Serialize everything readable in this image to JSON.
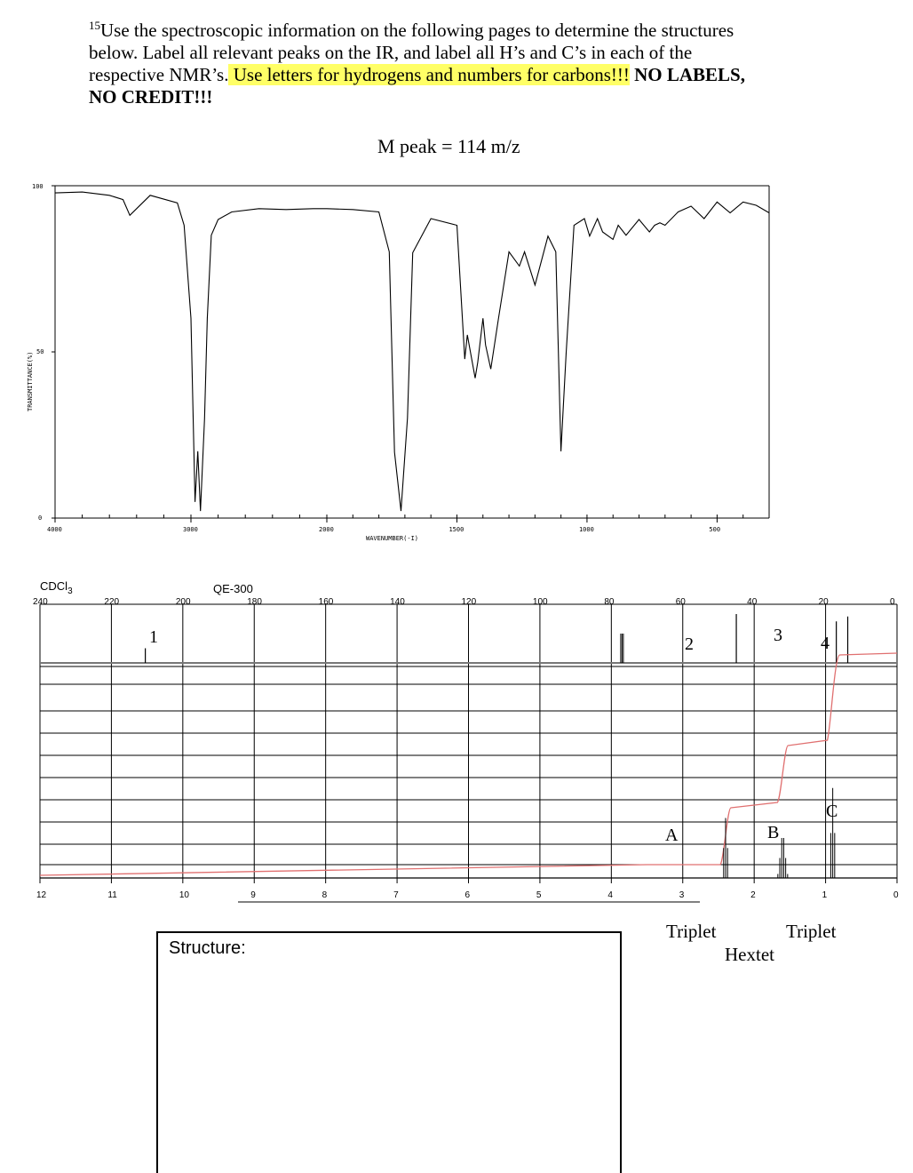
{
  "instructions": {
    "superscript": "15",
    "line1": "Use the spectroscopic information on the following pages to determine the structures",
    "line2": "below.  Label all relevant peaks on the IR, and label all H’s and C’s in each of the",
    "line3_pre": "respective NMR’s.",
    "line3_highlight": " Use letters for hydrogens and numbers for carbons!!!",
    "line3_bold": " NO LABELS,",
    "line4_bold": "NO CREDIT!!!"
  },
  "mass_spec": {
    "m_peak": "M peak = 114 m/z"
  },
  "ir": {
    "ylabel": "TRANSMITTANCE(%)",
    "xlabel": "WAVENUMBER(-I)",
    "y_ticks": [
      "100",
      "50",
      "0"
    ],
    "x_ticks": [
      "4000",
      "3000",
      "2000",
      "1500",
      "1000",
      "500"
    ]
  },
  "c13": {
    "solvent": "CDCl3",
    "instrument": "QE-300",
    "ticks": [
      "240",
      "220",
      "200",
      "180",
      "160",
      "140",
      "120",
      "100",
      "80",
      "60",
      "40",
      "20",
      "0"
    ],
    "peak_labels": [
      "1",
      "2",
      "3",
      "4"
    ]
  },
  "h1": {
    "ticks": [
      "12",
      "11",
      "10",
      "9",
      "8",
      "7",
      "6",
      "5",
      "4",
      "3",
      "2",
      "1",
      "0"
    ],
    "peak_labels": [
      "A",
      "B",
      "C"
    ],
    "multiplicities": [
      "Triplet",
      "Hextet",
      "Triplet"
    ]
  },
  "structure": {
    "label": "Structure:"
  },
  "chart_data": [
    {
      "type": "line",
      "title": "",
      "xlabel": "WAVENUMBER(-I)",
      "ylabel": "TRANSMITTANCE(%)",
      "xlim": [
        4000,
        300
      ],
      "ylim": [
        0,
        100
      ],
      "series": [
        {
          "x": [
            4000,
            3800,
            3600,
            3500,
            3450,
            3300,
            3100,
            3050,
            3000,
            2970,
            2950,
            2930,
            2900,
            2880,
            2850,
            2800,
            2700,
            2500,
            2300,
            2100,
            2000,
            1900,
            1800,
            1760,
            1740,
            1715,
            1690,
            1670,
            1600,
            1500,
            1470,
            1460,
            1430,
            1420,
            1400,
            1390,
            1370,
            1340,
            1300,
            1260,
            1240,
            1200,
            1150,
            1120,
            1100,
            1080,
            1050,
            1010,
            990,
            960,
            940,
            900,
            880,
            850,
            800,
            760,
            740,
            720,
            700,
            650,
            600,
            550,
            500,
            450,
            400,
            350,
            300
          ],
          "values": [
            98,
            98,
            97,
            96,
            91,
            97,
            95,
            88,
            60,
            5,
            20,
            2,
            30,
            60,
            85,
            90,
            92,
            93,
            93,
            93,
            93,
            93,
            92,
            80,
            20,
            2,
            30,
            80,
            90,
            88,
            48,
            55,
            42,
            47,
            60,
            52,
            45,
            60,
            80,
            76,
            80,
            70,
            85,
            80,
            20,
            50,
            88,
            90,
            85,
            90,
            86,
            84,
            88,
            85,
            90,
            86,
            88,
            89,
            88,
            92,
            94,
            90,
            95,
            92,
            95,
            94,
            92
          ]
        }
      ]
    },
    {
      "type": "line",
      "title": "CDCl3",
      "xlabel": "ppm",
      "xlim": [
        240,
        0
      ],
      "series": [
        {
          "name": "13C",
          "x": [
            210.5,
            77,
            45,
            17,
            13.8
          ],
          "values": [
            30,
            60,
            100,
            85,
            95
          ]
        }
      ]
    },
    {
      "type": "line",
      "title": "",
      "xlabel": "ppm",
      "xlim": [
        12,
        0
      ],
      "series": [
        {
          "name": "1H",
          "x": [
            2.4,
            1.6,
            0.9,
            0.0
          ],
          "values": [
            2,
            2,
            3,
            0
          ]
        }
      ]
    }
  ]
}
